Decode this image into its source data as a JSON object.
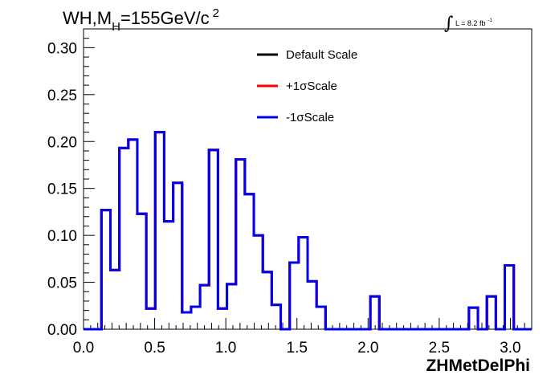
{
  "chart_data": {
    "type": "line",
    "title_main": "WH,M",
    "title_sub": "H",
    "title_rest": "=155GeV/c",
    "title_sup": "2",
    "lumi_text": "L = 8.2 fb",
    "lumi_sup": "-1",
    "xlabel": "ZHMetDelPhi",
    "ylabel": "",
    "xlim": [
      0.0,
      3.15
    ],
    "ylim": [
      0.0,
      0.32
    ],
    "xticks": [
      "0.0",
      "0.5",
      "1.0",
      "1.5",
      "2.0",
      "2.5",
      "3.0"
    ],
    "xtick_values": [
      0.0,
      0.5,
      1.0,
      1.5,
      2.0,
      2.5,
      3.0
    ],
    "yticks": [
      "0.00",
      "0.05",
      "0.10",
      "0.15",
      "0.20",
      "0.25",
      "0.30"
    ],
    "ytick_values": [
      0.0,
      0.05,
      0.1,
      0.15,
      0.2,
      0.25,
      0.3
    ],
    "grid": false,
    "legend_position": "top-center",
    "bin_width": 0.063,
    "bin_start": 0.0,
    "series": [
      {
        "name": "Default Scale",
        "color": "#000000",
        "values": [
          0,
          0,
          0.127,
          0.063,
          0.193,
          0.202,
          0.123,
          0.022,
          0.21,
          0.115,
          0.156,
          0.018,
          0.024,
          0.047,
          0.191,
          0.022,
          0.048,
          0.181,
          0.144,
          0.1,
          0.061,
          0.026,
          0,
          0.071,
          0.098,
          0.051,
          0.024,
          0,
          0,
          0,
          0,
          0,
          0.035,
          0,
          0,
          0,
          0,
          0,
          0,
          0,
          0,
          0,
          0,
          0.023,
          0,
          0.035,
          0,
          0.068,
          0,
          0
        ]
      },
      {
        "name": "+1σScale",
        "color": "#ff0000",
        "values": [
          0,
          0,
          0.127,
          0.063,
          0.193,
          0.202,
          0.123,
          0.022,
          0.21,
          0.115,
          0.156,
          0.018,
          0.024,
          0.047,
          0.191,
          0.022,
          0.048,
          0.181,
          0.144,
          0.1,
          0.061,
          0.026,
          0,
          0.071,
          0.098,
          0.051,
          0.024,
          0,
          0,
          0,
          0,
          0,
          0.035,
          0,
          0,
          0,
          0,
          0,
          0,
          0,
          0,
          0,
          0,
          0.023,
          0,
          0.035,
          0,
          0.068,
          0,
          0
        ]
      },
      {
        "name": "-1σScale",
        "color": "#0000ee",
        "values": [
          0,
          0,
          0.127,
          0.063,
          0.193,
          0.202,
          0.123,
          0.022,
          0.21,
          0.115,
          0.156,
          0.018,
          0.024,
          0.047,
          0.191,
          0.022,
          0.048,
          0.181,
          0.144,
          0.1,
          0.061,
          0.026,
          0,
          0.071,
          0.098,
          0.051,
          0.024,
          0,
          0,
          0,
          0,
          0,
          0.035,
          0,
          0,
          0,
          0,
          0,
          0,
          0,
          0,
          0,
          0,
          0.023,
          0,
          0.035,
          0,
          0.068,
          0,
          0
        ]
      }
    ]
  }
}
